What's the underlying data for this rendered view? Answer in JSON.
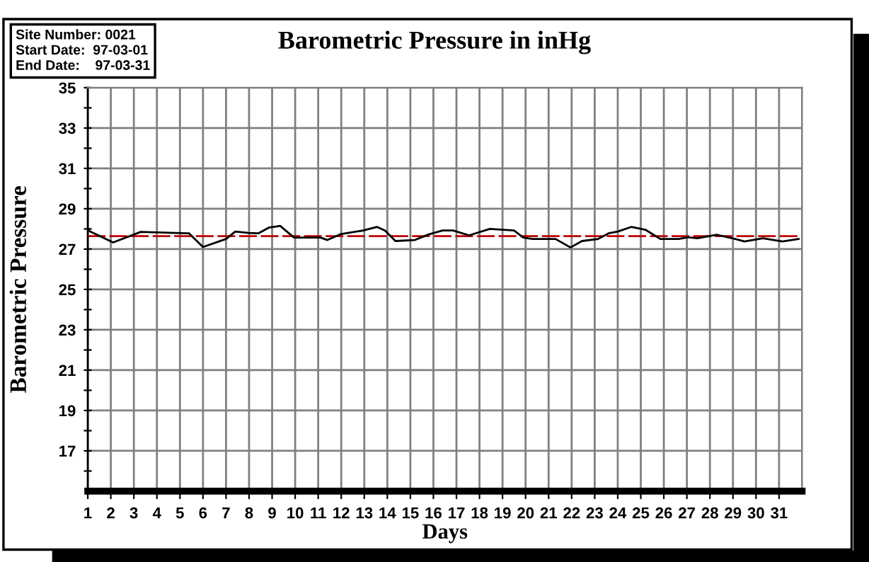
{
  "chart_data": {
    "type": "line",
    "title": "Barometric Pressure in inHg",
    "xlabel": "Days",
    "ylabel": "Barometric Pressure",
    "annotations": [
      "Site Number: 0021",
      "Start Date:  97-03-01",
      "End Date:    97-03-31"
    ],
    "series": [
      {
        "color": "#000000",
        "x": [
          1.0,
          1.1,
          2.1,
          3.3,
          5.4,
          6.0,
          7.0,
          7.4,
          8.0,
          8.4,
          8.85,
          9.35,
          9.95,
          11.1,
          11.4,
          12.0,
          12.95,
          13.55,
          13.9,
          14.35,
          15.2,
          15.8,
          16.4,
          16.85,
          17.55,
          18.45,
          19.5,
          19.9,
          20.3,
          21.3,
          21.95,
          22.45,
          23.15,
          23.6,
          24.0,
          24.6,
          25.2,
          25.85,
          26.65,
          27.05,
          27.45,
          28.3,
          29.1,
          29.5,
          30.3,
          31.15,
          31.85
        ],
        "values": [
          28.0,
          27.87,
          27.33,
          27.85,
          27.78,
          27.1,
          27.5,
          27.87,
          27.8,
          27.78,
          28.06,
          28.15,
          27.57,
          27.57,
          27.45,
          27.75,
          27.92,
          28.1,
          27.92,
          27.4,
          27.45,
          27.73,
          27.92,
          27.92,
          27.68,
          28.0,
          27.92,
          27.57,
          27.5,
          27.5,
          27.08,
          27.4,
          27.5,
          27.78,
          27.87,
          28.1,
          27.96,
          27.5,
          27.5,
          27.59,
          27.54,
          27.71,
          27.5,
          27.38,
          27.54,
          27.38,
          27.5
        ]
      }
    ],
    "ref_lines": [
      {
        "axis": "y",
        "value": 27.64,
        "color": "#c00000",
        "line_style": "dashed"
      }
    ],
    "xlim": [
      1,
      32
    ],
    "xticks": [
      1,
      2,
      3,
      4,
      5,
      6,
      7,
      8,
      9,
      10,
      11,
      12,
      13,
      14,
      15,
      16,
      17,
      18,
      19,
      20,
      21,
      22,
      23,
      24,
      25,
      26,
      27,
      28,
      29,
      30,
      31
    ],
    "ylim": [
      15,
      35
    ],
    "yticks": [
      {
        "value": 16,
        "label": null
      },
      17,
      {
        "value": 18,
        "label": null
      },
      19,
      {
        "value": 20,
        "label": null
      },
      21,
      {
        "value": 22,
        "label": null
      },
      23,
      {
        "value": 24,
        "label": null
      },
      25,
      {
        "value": 26,
        "label": null
      },
      27,
      {
        "value": 28,
        "label": null
      },
      29,
      {
        "value": 30,
        "label": null
      },
      31,
      {
        "value": 32,
        "label": null
      },
      33,
      {
        "value": 34,
        "label": null
      },
      35
    ],
    "grid": true,
    "marker": "none",
    "line_style": "solid",
    "legend": false
  }
}
